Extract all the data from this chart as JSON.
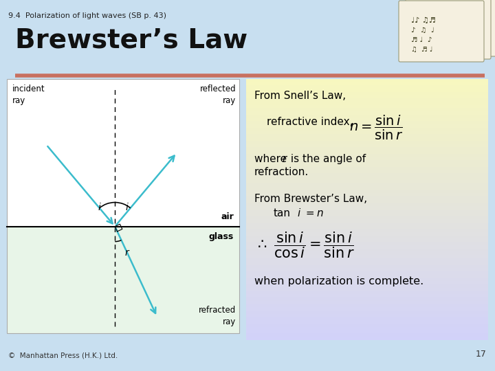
{
  "bg_color": "#c8dff0",
  "slide_title": "Brewster’s Law",
  "slide_subtitle": "9.4  Polarization of light waves (SB p. 43)",
  "divider_color": "#c87060",
  "footer_text": "©  Manhattan Press (H.K.) Ltd.",
  "page_number": "17",
  "from_snells": "From Snell’s Law,",
  "refractive_index_label": "refractive index,",
  "where_part1": "where ",
  "where_part2": "r",
  "where_part3": " is the angle of",
  "where_line2": "refraction.",
  "from_brewsters": "From Brewster’s Law,",
  "tani_text": "tan",
  "tani_i": "i",
  "tani_eq_n": " = ",
  "tani_n": "n",
  "polarization_text": "when polarization is complete.",
  "arrow_color": "#3bbccc",
  "diagram_bg_top": "#ffffff",
  "diagram_bg_bottom": "#e8f4e8",
  "air_label": "air",
  "glass_label": "glass",
  "incident_label": "incident\nray",
  "reflected_label": "reflected\nray",
  "refracted_label": "refracted\nray",
  "textbox_top_color": "#f8f8c0",
  "textbox_bot_color": "#d8d8f8",
  "title_fontsize": 28,
  "subtitle_fontsize": 8
}
